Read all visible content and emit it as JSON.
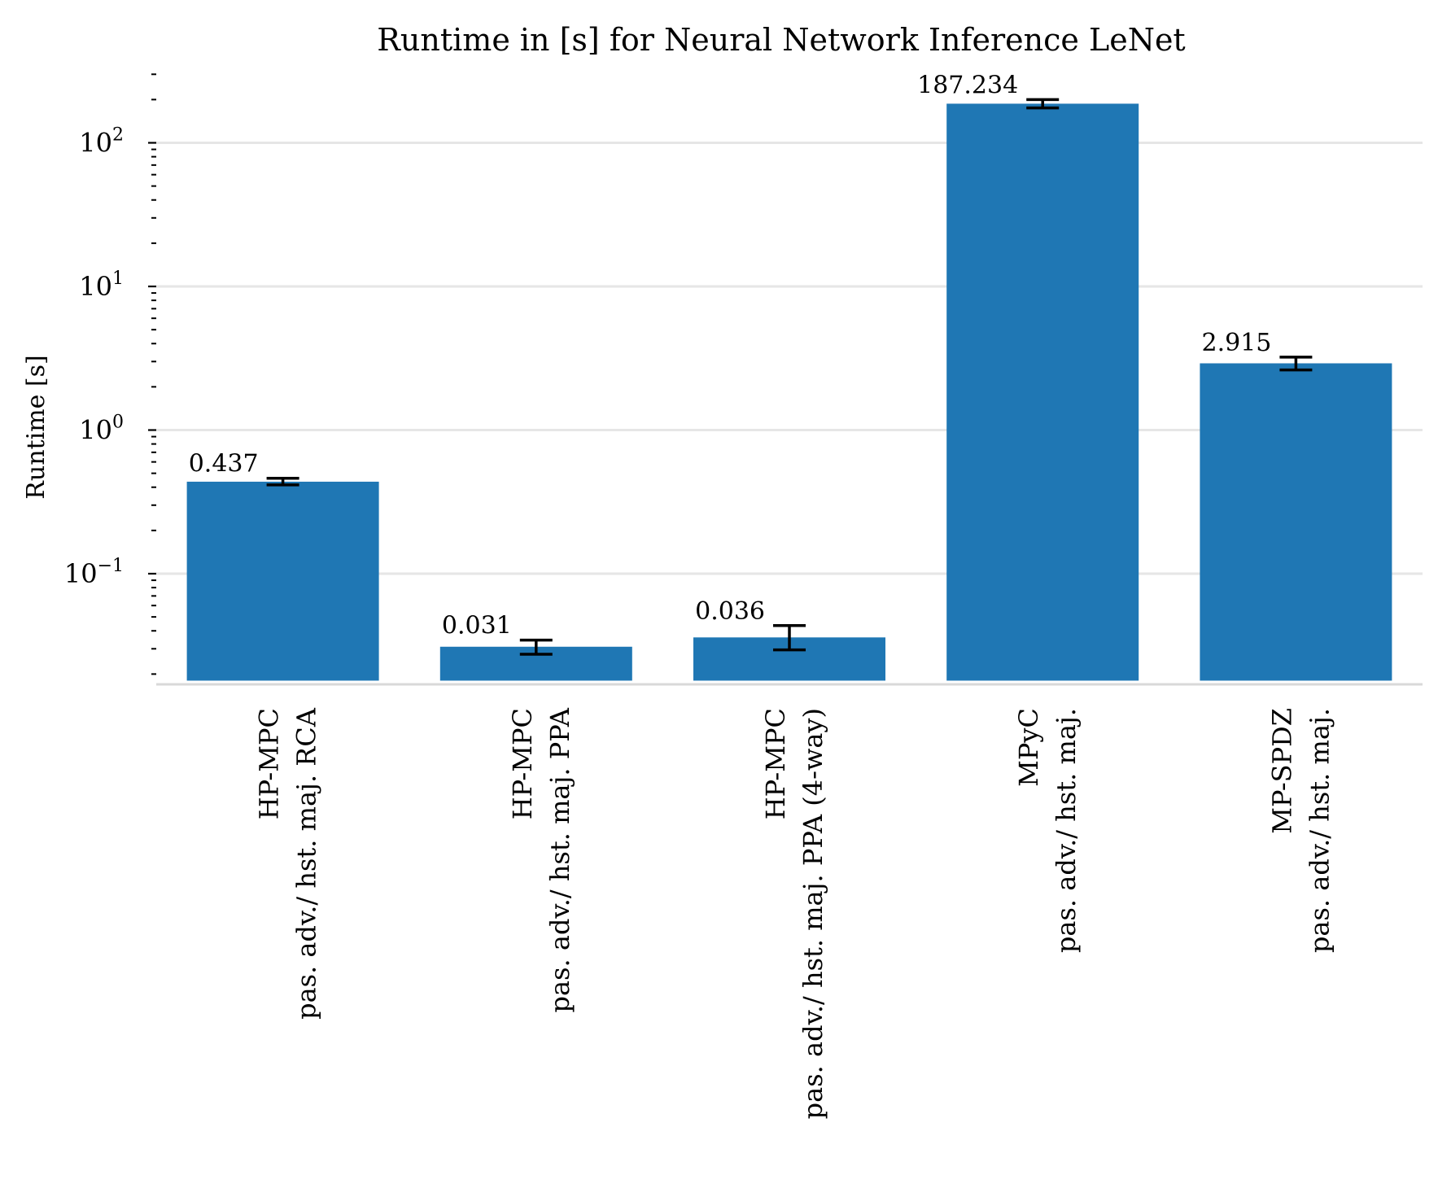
{
  "chart_data": {
    "type": "bar",
    "title": "Runtime in [s] for Neural Network Inference LeNet",
    "ylabel": "Runtime [s]",
    "xlabel": "",
    "yscale": "log",
    "ylim": [
      0.018,
      330
    ],
    "yticks": [
      {
        "value": 0.1,
        "base": "10",
        "exp": "−1"
      },
      {
        "value": 1,
        "base": "10",
        "exp": "0"
      },
      {
        "value": 10,
        "base": "10",
        "exp": "1"
      },
      {
        "value": 100,
        "base": "10",
        "exp": "2"
      }
    ],
    "grid": true,
    "bar_color": "#1f77b4",
    "categories": [
      {
        "line1": "HP-MPC",
        "line2": "pas. adv./ hst. maj. RCA"
      },
      {
        "line1": "HP-MPC",
        "line2": "pas. adv./ hst. maj. PPA"
      },
      {
        "line1": "HP-MPC",
        "line2": "pas. adv./ hst. maj. PPA (4-way)"
      },
      {
        "line1": "MPyC",
        "line2": "pas. adv./ hst. maj."
      },
      {
        "line1": "MP-SPDZ",
        "line2": "pas. adv./ hst. maj."
      }
    ],
    "values": [
      0.437,
      0.031,
      0.036,
      187.234,
      2.915
    ],
    "value_labels": [
      "0.437",
      "0.031",
      "0.036",
      "187.234",
      "2.915"
    ],
    "errors": [
      {
        "low": 0.415,
        "high": 0.462
      },
      {
        "low": 0.0275,
        "high": 0.0345
      },
      {
        "low": 0.0295,
        "high": 0.0435
      },
      {
        "low": 175,
        "high": 200
      },
      {
        "low": 2.62,
        "high": 3.22
      }
    ]
  }
}
